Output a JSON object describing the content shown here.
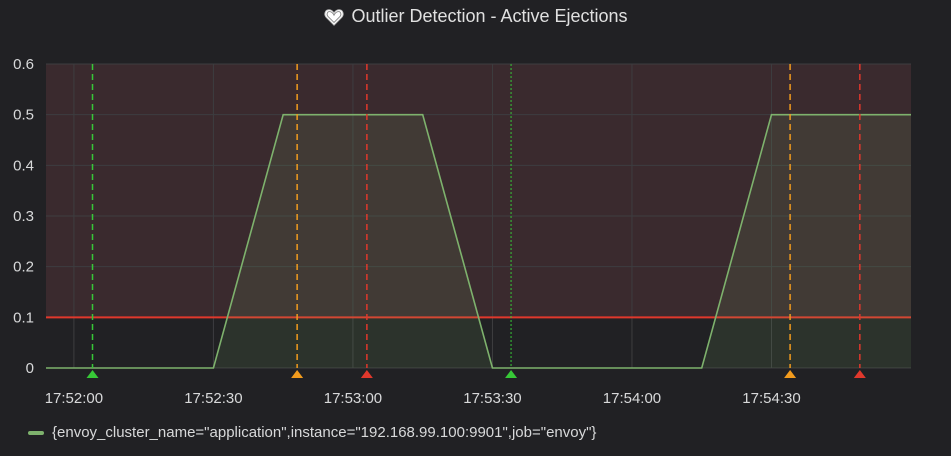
{
  "panel": {
    "title": "Outlier Detection - Active Ejections",
    "title_icon": "heart-icon"
  },
  "chart_data": {
    "type": "area",
    "title": "Outlier Detection - Active Ejections",
    "xlabel": "",
    "ylabel": "",
    "x_ticks": [
      "17:52:00",
      "17:52:30",
      "17:53:00",
      "17:53:30",
      "17:54:00",
      "17:54:30"
    ],
    "y_ticks": [
      "0",
      "0.1",
      "0.2",
      "0.3",
      "0.4",
      "0.5",
      "0.6"
    ],
    "ylim": [
      0,
      0.6
    ],
    "xlim": [
      "17:51:54",
      "17:55:00"
    ],
    "threshold": {
      "value": 0.1,
      "color": "#e0382c"
    },
    "series": [
      {
        "name": "{envoy_cluster_name=\"application\",instance=\"192.168.99.100:9901\",job=\"envoy\"}",
        "color": "#7eb26d",
        "points": [
          [
            "17:51:54",
            0
          ],
          [
            "17:52:30",
            0
          ],
          [
            "17:52:45",
            0.5
          ],
          [
            "17:53:15",
            0.5
          ],
          [
            "17:53:30",
            0
          ],
          [
            "17:54:15",
            0
          ],
          [
            "17:54:30",
            0.5
          ],
          [
            "17:55:00",
            0.5
          ]
        ]
      }
    ],
    "annotations": [
      {
        "time": "17:52:04",
        "color": "#37c837",
        "style": "dashed"
      },
      {
        "time": "17:52:48",
        "color": "#f29b1d",
        "style": "dashed"
      },
      {
        "time": "17:53:03",
        "color": "#e0382c",
        "style": "dashed"
      },
      {
        "time": "17:53:34",
        "color": "#37c837",
        "style": "dotted"
      },
      {
        "time": "17:54:34",
        "color": "#f29b1d",
        "style": "dashed"
      },
      {
        "time": "17:54:49",
        "color": "#e0382c",
        "style": "dashed"
      }
    ],
    "grid": true,
    "legend": "bottom-left"
  },
  "colors": {
    "background": "#212124",
    "threshold_fill": "#3a2a2e",
    "grid": "#3d3d40"
  }
}
